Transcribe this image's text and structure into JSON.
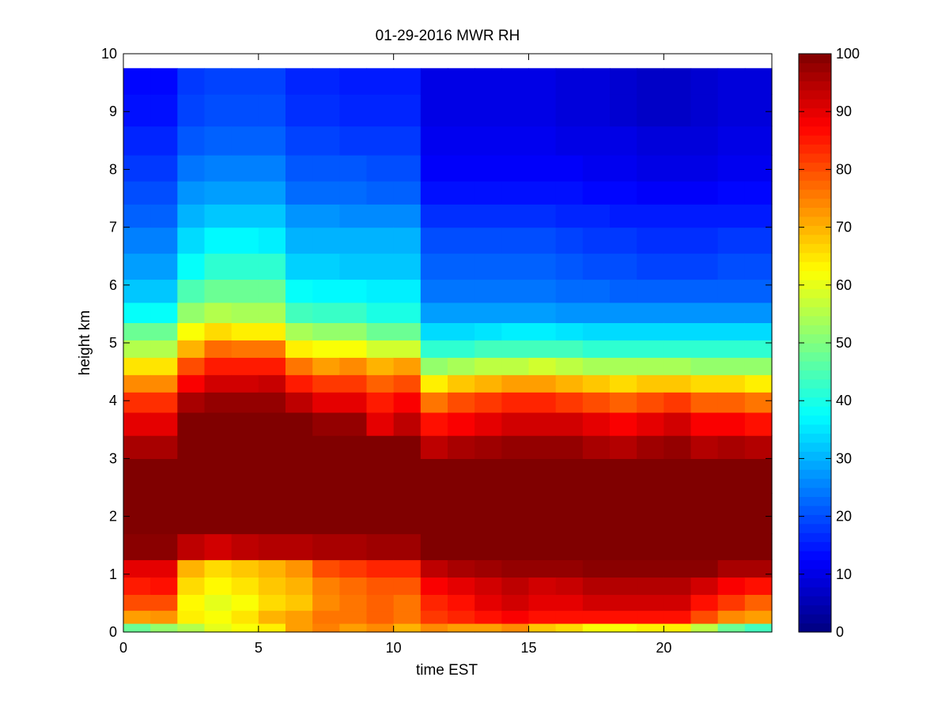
{
  "chart_data": {
    "type": "heatmap",
    "title": "01-29-2016 MWR RH",
    "xlabel": "time EST",
    "ylabel": "height km",
    "xlim": [
      0,
      24
    ],
    "ylim": [
      0,
      10
    ],
    "xticks": [
      "0",
      "5",
      "10",
      "15",
      "20"
    ],
    "yticks": [
      "0",
      "1",
      "2",
      "3",
      "4",
      "5",
      "6",
      "7",
      "8",
      "9",
      "10"
    ],
    "colorbar": {
      "range": [
        0,
        100
      ],
      "ticks": [
        "0",
        "10",
        "20",
        "30",
        "40",
        "50",
        "60",
        "70",
        "80",
        "90",
        "100"
      ],
      "colormap": "jet"
    },
    "x": [
      0,
      1,
      2,
      3,
      4,
      5,
      6,
      7,
      8,
      9,
      10,
      11,
      12,
      13,
      14,
      15,
      16,
      17,
      18,
      19,
      20,
      21,
      22,
      23
    ],
    "heights": [
      0.05,
      0.25,
      0.5,
      0.8,
      1.1,
      1.4,
      2.0,
      2.8,
      3.2,
      3.6,
      4.0,
      4.3,
      4.6,
      4.9,
      5.2,
      5.5,
      5.9,
      6.3,
      6.8,
      7.2,
      7.6,
      8.0,
      8.5,
      9.0,
      9.6
    ],
    "profile_features": [
      {
        "x": 0,
        "moist_top": 3.3,
        "rh_upper": 23,
        "rh_top": 13
      },
      {
        "x": 1,
        "moist_top": 3.3,
        "rh_upper": 23,
        "rh_top": 13
      },
      {
        "x": 2,
        "moist_top": 4.2,
        "rh_upper": 36,
        "rh_top": 18
      },
      {
        "x": 3,
        "moist_top": 4.4,
        "rh_upper": 38,
        "rh_top": 19
      },
      {
        "x": 4,
        "moist_top": 4.4,
        "rh_upper": 39,
        "rh_top": 19
      },
      {
        "x": 5,
        "moist_top": 4.4,
        "rh_upper": 38,
        "rh_top": 19
      },
      {
        "x": 6,
        "moist_top": 4.0,
        "rh_upper": 33,
        "rh_top": 16
      },
      {
        "x": 7,
        "moist_top": 3.9,
        "rh_upper": 32,
        "rh_top": 16
      },
      {
        "x": 8,
        "moist_top": 3.9,
        "rh_upper": 32,
        "rh_top": 15
      },
      {
        "x": 9,
        "moist_top": 3.4,
        "rh_upper": 31,
        "rh_top": 15
      },
      {
        "x": 10,
        "moist_top": 3.6,
        "rh_upper": 32,
        "rh_top": 15
      },
      {
        "x": 11,
        "moist_top": 3.0,
        "rh_upper": 22,
        "rh_top": 10
      },
      {
        "x": 12,
        "moist_top": 3.2,
        "rh_upper": 22,
        "rh_top": 10
      },
      {
        "x": 13,
        "moist_top": 3.4,
        "rh_upper": 21,
        "rh_top": 10
      },
      {
        "x": 14,
        "moist_top": 3.6,
        "rh_upper": 20,
        "rh_top": 10
      },
      {
        "x": 15,
        "moist_top": 3.6,
        "rh_upper": 20,
        "rh_top": 10
      },
      {
        "x": 16,
        "moist_top": 3.5,
        "rh_upper": 20,
        "rh_top": 9
      },
      {
        "x": 17,
        "moist_top": 3.3,
        "rh_upper": 19,
        "rh_top": 9
      },
      {
        "x": 18,
        "moist_top": 3.2,
        "rh_upper": 19,
        "rh_top": 8
      },
      {
        "x": 19,
        "moist_top": 3.4,
        "rh_upper": 19,
        "rh_top": 7
      },
      {
        "x": 20,
        "moist_top": 3.6,
        "rh_upper": 19,
        "rh_top": 7
      },
      {
        "x": 21,
        "moist_top": 3.2,
        "rh_upper": 19,
        "rh_top": 8
      },
      {
        "x": 22,
        "moist_top": 3.3,
        "rh_upper": 19,
        "rh_top": 9
      },
      {
        "x": 23,
        "moist_top": 3.2,
        "rh_upper": 19,
        "rh_top": 9
      }
    ],
    "values": [
      [
        48,
        72,
        80,
        85,
        90,
        99,
        100,
        100,
        96,
        90,
        83,
        74,
        65,
        55,
        48,
        38,
        32,
        28,
        25,
        22,
        20,
        18,
        16,
        14,
        13
      ],
      [
        52,
        73,
        80,
        86,
        90,
        99,
        100,
        100,
        96,
        90,
        83,
        74,
        65,
        55,
        48,
        38,
        32,
        28,
        25,
        22,
        20,
        18,
        16,
        14,
        13
      ],
      [
        55,
        64,
        63,
        66,
        70,
        94,
        100,
        100,
        100,
        100,
        96,
        88,
        80,
        70,
        62,
        52,
        45,
        38,
        34,
        30,
        27,
        24,
        21,
        19,
        18
      ],
      [
        60,
        62,
        60,
        63,
        66,
        92,
        100,
        100,
        100,
        100,
        98,
        92,
        85,
        77,
        66,
        55,
        48,
        42,
        37,
        32,
        28,
        25,
        22,
        20,
        19
      ],
      [
        62,
        65,
        62,
        65,
        68,
        94,
        100,
        100,
        100,
        100,
        98,
        92,
        85,
        76,
        64,
        54,
        48,
        42,
        37,
        32,
        28,
        25,
        22,
        20,
        19
      ],
      [
        64,
        70,
        66,
        68,
        70,
        95,
        100,
        100,
        100,
        100,
        98,
        93,
        85,
        76,
        64,
        54,
        48,
        42,
        36,
        32,
        28,
        25,
        22,
        20,
        19
      ],
      [
        72,
        72,
        68,
        70,
        73,
        95,
        100,
        100,
        100,
        100,
        94,
        85,
        76,
        64,
        54,
        44,
        38,
        33,
        30,
        27,
        23,
        21,
        19,
        17,
        16
      ],
      [
        75,
        76,
        74,
        75,
        80,
        96,
        100,
        100,
        100,
        98,
        90,
        82,
        72,
        62,
        52,
        43,
        37,
        33,
        30,
        27,
        23,
        21,
        19,
        17,
        16
      ],
      [
        72,
        76,
        76,
        77,
        82,
        96,
        100,
        100,
        100,
        98,
        90,
        82,
        74,
        62,
        52,
        43,
        37,
        32,
        30,
        26,
        23,
        21,
        18,
        16,
        15
      ],
      [
        74,
        78,
        78,
        79,
        84,
        97,
        100,
        100,
        100,
        90,
        85,
        78,
        70,
        58,
        48,
        40,
        36,
        32,
        30,
        26,
        22,
        20,
        18,
        16,
        15
      ],
      [
        70,
        76,
        76,
        79,
        84,
        97,
        100,
        100,
        100,
        94,
        88,
        80,
        72,
        58,
        48,
        40,
        36,
        32,
        30,
        26,
        22,
        20,
        18,
        16,
        15
      ],
      [
        74,
        82,
        84,
        88,
        94,
        100,
        100,
        100,
        94,
        86,
        76,
        64,
        52,
        42,
        34,
        28,
        24,
        22,
        20,
        17,
        14,
        12,
        11,
        10,
        10
      ],
      [
        72,
        84,
        86,
        90,
        96,
        100,
        100,
        100,
        96,
        88,
        80,
        68,
        54,
        42,
        34,
        28,
        24,
        22,
        20,
        17,
        14,
        12,
        11,
        10,
        10
      ],
      [
        72,
        86,
        90,
        92,
        97,
        100,
        100,
        100,
        97,
        90,
        82,
        70,
        56,
        44,
        35,
        28,
        24,
        22,
        20,
        17,
        14,
        12,
        11,
        10,
        10
      ],
      [
        74,
        88,
        92,
        94,
        98,
        100,
        100,
        100,
        98,
        92,
        84,
        72,
        56,
        44,
        36,
        28,
        24,
        22,
        20,
        17,
        14,
        12,
        11,
        10,
        10
      ],
      [
        68,
        86,
        90,
        92,
        98,
        100,
        100,
        100,
        98,
        92,
        84,
        72,
        58,
        44,
        36,
        28,
        24,
        22,
        20,
        17,
        14,
        12,
        11,
        10,
        10
      ],
      [
        66,
        86,
        90,
        93,
        98,
        100,
        100,
        100,
        98,
        92,
        82,
        70,
        56,
        44,
        35,
        27,
        23,
        21,
        19,
        16,
        14,
        12,
        10,
        9,
        9
      ],
      [
        62,
        86,
        92,
        95,
        99,
        100,
        100,
        100,
        96,
        90,
        80,
        68,
        54,
        42,
        34,
        27,
        23,
        20,
        18,
        16,
        13,
        11,
        10,
        9,
        9
      ],
      [
        62,
        86,
        92,
        95,
        99,
        100,
        100,
        100,
        95,
        88,
        78,
        66,
        54,
        42,
        34,
        27,
        22,
        20,
        18,
        15,
        13,
        11,
        10,
        8,
        8
      ],
      [
        64,
        86,
        92,
        95,
        99,
        100,
        100,
        100,
        97,
        90,
        80,
        68,
        54,
        42,
        34,
        27,
        22,
        19,
        17,
        15,
        12,
        10,
        9,
        7,
        7
      ],
      [
        64,
        86,
        92,
        95,
        99,
        100,
        100,
        100,
        98,
        92,
        82,
        68,
        54,
        42,
        34,
        27,
        22,
        19,
        17,
        15,
        12,
        10,
        9,
        7,
        7
      ],
      [
        56,
        80,
        86,
        92,
        99,
        100,
        100,
        100,
        95,
        88,
        78,
        66,
        52,
        42,
        34,
        27,
        22,
        19,
        17,
        15,
        12,
        10,
        9,
        8,
        8
      ],
      [
        48,
        74,
        82,
        88,
        96,
        100,
        100,
        100,
        96,
        88,
        78,
        66,
        52,
        42,
        34,
        27,
        22,
        20,
        18,
        15,
        13,
        11,
        10,
        9,
        9
      ],
      [
        44,
        72,
        78,
        86,
        96,
        100,
        100,
        100,
        95,
        86,
        76,
        64,
        52,
        42,
        34,
        27,
        22,
        20,
        18,
        15,
        13,
        11,
        10,
        9,
        9
      ]
    ]
  }
}
